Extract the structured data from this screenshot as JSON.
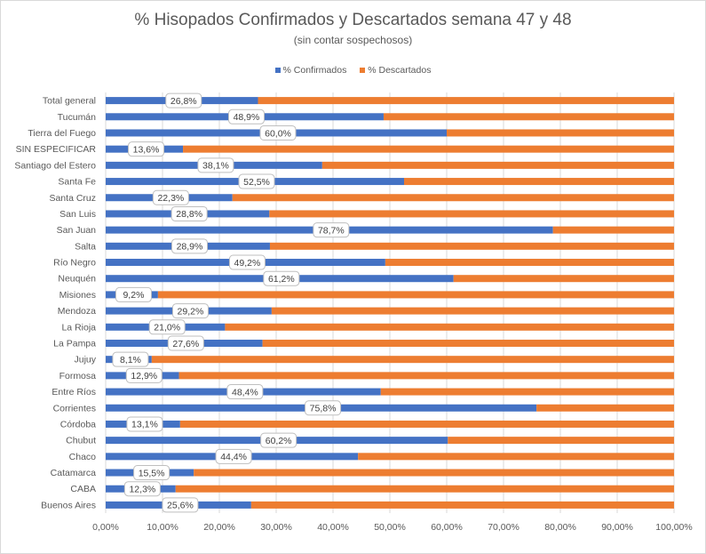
{
  "chart_data": {
    "type": "bar",
    "orientation": "horizontal",
    "stacked": "100%",
    "title": "% Hisopados Confirmados y Descartados semana 47 y 48",
    "subtitle": "(sin contar sospechosos)",
    "legend_position": "top",
    "grid": true,
    "xlim": [
      0,
      100
    ],
    "x_ticks": [
      "0,00%",
      "10,00%",
      "20,00%",
      "30,00%",
      "40,00%",
      "50,00%",
      "60,00%",
      "70,00%",
      "80,00%",
      "90,00%",
      "100,00%"
    ],
    "categories": [
      "Total general",
      "Tucumán",
      "Tierra del Fuego",
      "SIN ESPECIFICAR",
      "Santiago del Estero",
      "Santa Fe",
      "Santa Cruz",
      "San Luis",
      "San Juan",
      "Salta",
      "Río Negro",
      "Neuquén",
      "Misiones",
      "Mendoza",
      "La Rioja",
      "La Pampa",
      "Jujuy",
      "Formosa",
      "Entre Ríos",
      "Corrientes",
      "Córdoba",
      "Chubut",
      "Chaco",
      "Catamarca",
      "CABA",
      "Buenos Aires"
    ],
    "series": [
      {
        "name": "% Confirmados",
        "color": "#4472c4",
        "values": [
          26.8,
          48.9,
          60.0,
          13.6,
          38.1,
          52.5,
          22.3,
          28.8,
          78.7,
          28.9,
          49.2,
          61.2,
          9.2,
          29.2,
          21.0,
          27.6,
          8.1,
          12.9,
          48.4,
          75.8,
          13.1,
          60.2,
          44.4,
          15.5,
          12.3,
          25.6
        ],
        "data_labels": [
          "26,8%",
          "48,9%",
          "60,0%",
          "13,6%",
          "38,1%",
          "52,5%",
          "22,3%",
          "28,8%",
          "78,7%",
          "28,9%",
          "49,2%",
          "61,2%",
          "9,2%",
          "29,2%",
          "21,0%",
          "27,6%",
          "8,1%",
          "12,9%",
          "48,4%",
          "75,8%",
          "13,1%",
          "60,2%",
          "44,4%",
          "15,5%",
          "12,3%",
          "25,6%"
        ]
      },
      {
        "name": "% Descartados",
        "color": "#ed7d31",
        "values": [
          73.2,
          51.1,
          40.0,
          86.4,
          61.9,
          47.5,
          77.7,
          71.2,
          21.3,
          71.1,
          50.8,
          38.8,
          90.8,
          70.8,
          79.0,
          72.4,
          91.9,
          87.1,
          51.6,
          24.2,
          86.9,
          39.8,
          55.6,
          84.5,
          87.7,
          74.4
        ]
      }
    ]
  }
}
